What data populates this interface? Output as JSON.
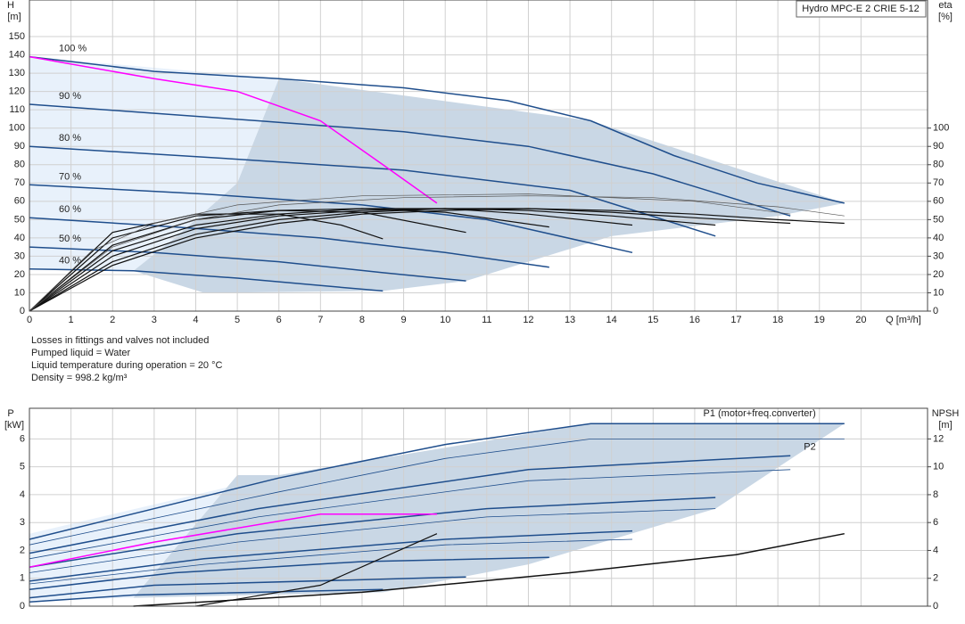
{
  "chart_data": [
    {
      "type": "line",
      "title": "Hydro MPC-E 2 CRIE 5-12",
      "ylabel": "H",
      "yunit": "[m]",
      "y2label": "eta",
      "y2unit": "[%]",
      "xlabel": "Q [m³/h]",
      "xlim": [
        0,
        21.6
      ],
      "xticks": [
        0,
        1,
        2,
        3,
        4,
        5,
        6,
        7,
        8,
        9,
        10,
        11,
        12,
        13,
        14,
        15,
        16,
        17,
        18,
        19,
        20
      ],
      "ylim": [
        0,
        170
      ],
      "yticks": [
        0,
        10,
        20,
        30,
        40,
        50,
        60,
        70,
        80,
        90,
        100,
        110,
        120,
        130,
        140,
        150
      ],
      "y2lim": [
        0,
        170
      ],
      "y2ticks": [
        0,
        10,
        20,
        30,
        40,
        50,
        60,
        70,
        80,
        90,
        100
      ],
      "grid": true,
      "series_label_pos": "start",
      "areas": [
        {
          "color": "#e8f1fb",
          "x": [
            0,
            0,
            6,
            5,
            3.5,
            2.5
          ],
          "values": [
            23,
            139,
            127,
            70,
            40,
            22
          ]
        },
        {
          "color": "#c9d7e5",
          "x": [
            4.2,
            2.5,
            3.5,
            5,
            6,
            13.5,
            19.6,
            18,
            14,
            10.5,
            8.5
          ],
          "values": [
            10,
            22,
            40,
            70,
            127,
            104,
            59,
            52,
            41,
            16.5,
            11
          ]
        }
      ],
      "series": [
        {
          "name": "100 %",
          "color": "#1f4e8c",
          "width": 1.5,
          "x": [
            0,
            3,
            6,
            9,
            11.5,
            13.5,
            15.5,
            17.5,
            19.6
          ],
          "values": [
            139,
            131,
            127,
            122,
            115,
            104,
            85,
            70,
            59
          ]
        },
        {
          "name": "90 %",
          "color": "#1f4e8c",
          "width": 1.5,
          "x": [
            0,
            5.5,
            9,
            12,
            15,
            18.3
          ],
          "values": [
            113,
            104,
            98,
            90,
            75,
            52
          ]
        },
        {
          "name": "80 %",
          "color": "#1f4e8c",
          "width": 1.5,
          "x": [
            0,
            5,
            9,
            13,
            16.5
          ],
          "values": [
            90,
            83,
            77,
            66,
            41
          ]
        },
        {
          "name": "70 %",
          "color": "#1f4e8c",
          "width": 1.5,
          "x": [
            0,
            4.2,
            8,
            11,
            14.5
          ],
          "values": [
            69,
            64,
            58,
            50,
            32
          ]
        },
        {
          "name": "60 %",
          "color": "#1f4e8c",
          "width": 1.5,
          "x": [
            0,
            3.5,
            7,
            10,
            12.5
          ],
          "values": [
            51,
            46,
            40,
            32,
            24
          ]
        },
        {
          "name": "50 %",
          "color": "#1f4e8c",
          "width": 1.5,
          "x": [
            0,
            3,
            6,
            8.5,
            10.5
          ],
          "values": [
            35,
            32,
            27,
            21,
            16.5
          ]
        },
        {
          "name": "40 %",
          "color": "#1f4e8c",
          "width": 1.5,
          "x": [
            0,
            2.5,
            5,
            7,
            8.5
          ],
          "values": [
            23,
            22,
            18,
            14,
            11
          ]
        },
        {
          "color": "#ff00ff",
          "width": 1.5,
          "x": [
            0,
            3,
            5,
            7,
            8.5,
            9.8
          ],
          "values": [
            139,
            127,
            120,
            104,
            80,
            59
          ]
        },
        {
          "color": "#111111",
          "width": 1.2,
          "axis": "y2",
          "x": [
            0,
            2,
            4,
            6,
            8,
            10,
            12,
            14,
            16,
            18,
            19.6
          ],
          "values": [
            0,
            25,
            40,
            48,
            53,
            55,
            56,
            55,
            53,
            50,
            48
          ]
        },
        {
          "color": "#111111",
          "width": 1.2,
          "axis": "y2",
          "x": [
            0,
            2,
            4,
            6,
            8,
            10,
            12,
            14,
            16,
            18.3
          ],
          "values": [
            0,
            27,
            42,
            50,
            54,
            56,
            56,
            54,
            51,
            48
          ]
        },
        {
          "color": "#111111",
          "width": 1.2,
          "axis": "y2",
          "x": [
            0,
            2,
            4,
            6,
            8,
            10,
            12,
            14,
            16.5
          ],
          "values": [
            0,
            30,
            45,
            52,
            55,
            56,
            55,
            52,
            47
          ]
        },
        {
          "color": "#111111",
          "width": 1.2,
          "axis": "y2",
          "x": [
            0,
            2,
            4,
            6,
            8,
            10,
            12,
            14.5
          ],
          "values": [
            0,
            33,
            47,
            53,
            56,
            56,
            53,
            47
          ]
        },
        {
          "color": "#111111",
          "width": 1.2,
          "axis": "y2",
          "x": [
            0,
            2,
            4,
            6,
            8,
            10,
            12.5
          ],
          "values": [
            0,
            36,
            50,
            55,
            56,
            54,
            46
          ]
        },
        {
          "color": "#111111",
          "width": 1.2,
          "axis": "y2",
          "x": [
            0,
            2,
            4,
            6,
            8,
            10.5
          ],
          "values": [
            0,
            40,
            52,
            55,
            54,
            43
          ]
        },
        {
          "color": "#111111",
          "width": 1.2,
          "axis": "y2",
          "x": [
            0,
            2,
            4,
            6,
            7.5,
            8.5
          ],
          "values": [
            0,
            43,
            53,
            53,
            47,
            39.5
          ]
        },
        {
          "color": "#555555",
          "width": 0.7,
          "axis": "y2",
          "x": [
            0,
            2,
            4,
            6,
            9,
            12,
            15,
            18,
            19.6
          ],
          "values": [
            0,
            35,
            50,
            58,
            62,
            63,
            62,
            57,
            52
          ]
        },
        {
          "color": "#555555",
          "width": 0.7,
          "axis": "y2",
          "x": [
            0,
            1.5,
            3,
            5,
            8,
            12,
            16,
            18.3
          ],
          "values": [
            0,
            33,
            48,
            58,
            63,
            64,
            60,
            53
          ]
        }
      ]
    },
    {
      "type": "line",
      "ylabel": "P",
      "yunit": "[kW]",
      "y2label": "NPSH",
      "y2unit": "[m]",
      "xlim": [
        0,
        21.6
      ],
      "ylim": [
        0,
        7.1
      ],
      "yticks": [
        0,
        1,
        2,
        3,
        4,
        5,
        6
      ],
      "y2lim": [
        0,
        14.2
      ],
      "y2ticks": [
        0,
        2,
        4,
        6,
        8,
        10,
        12
      ],
      "grid": true,
      "series_label_pos": "end",
      "areas": [
        {
          "color": "#e8f1fb",
          "x": [
            0,
            0,
            6,
            5,
            2.5
          ],
          "values": [
            0.2,
            2.6,
            4.7,
            4.7,
            0.3
          ]
        },
        {
          "color": "#c9d7e5",
          "x": [
            2.5,
            5,
            6,
            13.5,
            19.6,
            16.5,
            12,
            8.5
          ],
          "values": [
            0.3,
            4.7,
            4.7,
            6.55,
            6.55,
            3.5,
            1.5,
            0.5
          ]
        }
      ],
      "series": [
        {
          "name": "P1 (motor+freq.converter)",
          "color": "#1f4e8c",
          "width": 1.5,
          "x": [
            0,
            6,
            10,
            13.5,
            19.6
          ],
          "values": [
            2.4,
            4.6,
            5.8,
            6.55,
            6.55
          ]
        },
        {
          "name": "P2",
          "color": "#1f4e8c",
          "width": 0.8,
          "x": [
            0,
            6,
            10,
            13.5,
            19.6
          ],
          "values": [
            2.2,
            4.1,
            5.3,
            6.0,
            6.0
          ]
        },
        {
          "color": "#1f4e8c",
          "width": 1.5,
          "x": [
            0,
            5.5,
            12,
            18.3
          ],
          "values": [
            1.9,
            3.5,
            4.9,
            5.4
          ]
        },
        {
          "color": "#1f4e8c",
          "width": 0.8,
          "x": [
            0,
            5.5,
            12,
            18.3
          ],
          "values": [
            1.7,
            3.2,
            4.5,
            4.9
          ]
        },
        {
          "color": "#1f4e8c",
          "width": 1.5,
          "x": [
            0,
            5,
            11,
            16.5
          ],
          "values": [
            1.4,
            2.6,
            3.5,
            3.9
          ]
        },
        {
          "color": "#1f4e8c",
          "width": 0.8,
          "x": [
            0,
            5,
            11,
            16.5
          ],
          "values": [
            1.2,
            2.3,
            3.2,
            3.5
          ]
        },
        {
          "color": "#1f4e8c",
          "width": 1.5,
          "x": [
            0,
            4.2,
            10,
            14.5
          ],
          "values": [
            0.9,
            1.7,
            2.4,
            2.7
          ]
        },
        {
          "color": "#1f4e8c",
          "width": 0.8,
          "x": [
            0,
            4.2,
            10,
            14.5
          ],
          "values": [
            0.8,
            1.5,
            2.2,
            2.4
          ]
        },
        {
          "color": "#1f4e8c",
          "width": 1.5,
          "x": [
            0,
            3.5,
            8,
            12.5
          ],
          "values": [
            0.6,
            1.2,
            1.6,
            1.75
          ]
        },
        {
          "color": "#1f4e8c",
          "width": 1.5,
          "x": [
            0,
            3,
            10.5
          ],
          "values": [
            0.3,
            0.75,
            1.05
          ]
        },
        {
          "color": "#1f4e8c",
          "width": 1.5,
          "x": [
            0,
            2.5,
            8.5
          ],
          "values": [
            0.15,
            0.4,
            0.6
          ]
        },
        {
          "color": "#ff00ff",
          "width": 1.5,
          "x": [
            0,
            3,
            7,
            9.8
          ],
          "values": [
            1.4,
            2.3,
            3.3,
            3.3
          ]
        },
        {
          "color": "#111111",
          "width": 1.5,
          "axis": "y2",
          "x": [
            2.5,
            8,
            13,
            17,
            19.6
          ],
          "values": [
            0,
            1,
            2.4,
            3.7,
            5.2
          ]
        },
        {
          "color": "#111111",
          "width": 1.2,
          "axis": "y2",
          "x": [
            4,
            7,
            9.8
          ],
          "values": [
            0,
            1.5,
            5.2
          ]
        }
      ]
    }
  ],
  "notes": [
    "Losses in fittings and valves not included",
    "Pumped liquid = Water",
    "Liquid temperature during operation = 20 °C",
    "Density = 998.2 kg/m³"
  ]
}
